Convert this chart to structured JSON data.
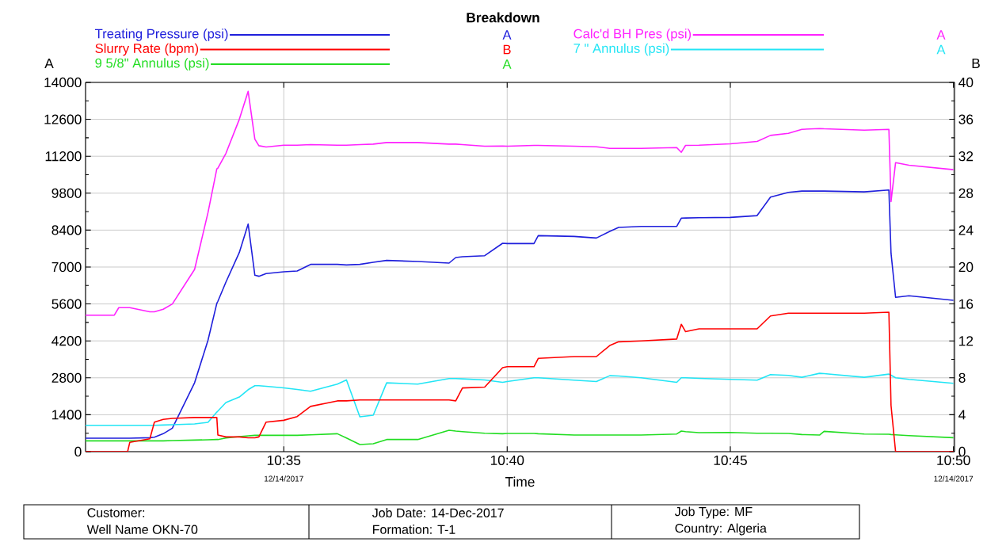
{
  "chart_data": {
    "type": "line",
    "title": "Breakdown",
    "xlabel": "Time",
    "ylabel": "A",
    "y2label": "B",
    "x": [
      10.5093,
      10.52,
      10.5217,
      10.525,
      10.5258,
      10.5333,
      10.535,
      10.5383,
      10.5417,
      10.55,
      10.555,
      10.5583,
      10.5587,
      10.5617,
      10.5667,
      10.57,
      10.5725,
      10.574,
      10.5767,
      10.5833,
      10.5883,
      10.5933,
      10.6033,
      10.6067,
      10.6117,
      10.6167,
      10.6217,
      10.6333,
      10.645,
      10.6475,
      10.65,
      10.6583,
      10.665,
      10.6667,
      10.6767,
      10.6783,
      10.6917,
      10.7,
      10.705,
      10.7083,
      10.7167,
      10.73,
      10.7317,
      10.7333,
      10.7383,
      10.75,
      10.76,
      10.765,
      10.7717,
      10.7767,
      10.7833,
      10.785,
      10.8,
      10.8092,
      10.81,
      10.8117,
      10.8167,
      10.8333
    ],
    "series": [
      {
        "name": "Treating Pressure (psi)",
        "color": "#1f1fdc",
        "axis": "y",
        "values": [
          510,
          510,
          510,
          510,
          510,
          530,
          550,
          680,
          890,
          2610,
          4220,
          5620,
          5700,
          6430,
          7550,
          8630,
          6690,
          6650,
          6750,
          6820,
          6850,
          7100,
          7100,
          7080,
          7100,
          7180,
          7250,
          7210,
          7150,
          7360,
          7390,
          7430,
          7900,
          7890,
          7890,
          8190,
          8160,
          8100,
          8350,
          8500,
          8540,
          8540,
          8850,
          8860,
          8870,
          8880,
          8950,
          9650,
          9830,
          9880,
          9880,
          9880,
          9850,
          9920,
          7520,
          5850,
          5910,
          5740
        ]
      },
      {
        "name": "Slurry Rate (bpm)",
        "color": "#ff0000",
        "axis": "y2",
        "values": [
          0,
          0,
          0,
          0,
          1.0,
          1.4,
          3.2,
          3.5,
          3.6,
          3.7,
          3.7,
          3.7,
          1.8,
          1.6,
          1.6,
          1.5,
          1.5,
          1.6,
          3.2,
          3.4,
          3.8,
          4.9,
          5.5,
          5.5,
          5.6,
          5.6,
          5.6,
          5.6,
          5.6,
          5.5,
          6.9,
          7.0,
          9.1,
          9.2,
          9.2,
          10.1,
          10.3,
          10.3,
          11.5,
          11.9,
          12.0,
          12.2,
          13.8,
          13.0,
          13.3,
          13.3,
          13.3,
          14.7,
          15.0,
          15.0,
          15.0,
          15.0,
          15.0,
          15.1,
          5.0,
          0,
          0,
          0
        ]
      },
      {
        "name": "9 5/8\" Annulus (psi)",
        "color": "#22dd22",
        "axis": "y",
        "values": [
          410,
          410,
          410,
          410,
          410,
          410,
          410,
          410,
          420,
          440,
          450,
          460,
          460,
          520,
          570,
          600,
          620,
          620,
          620,
          620,
          620,
          640,
          680,
          520,
          270,
          300,
          460,
          460,
          810,
          780,
          760,
          700,
          680,
          690,
          690,
          680,
          630,
          630,
          630,
          630,
          630,
          670,
          780,
          760,
          720,
          730,
          700,
          700,
          690,
          650,
          630,
          770,
          670,
          660,
          650,
          640,
          610,
          530
        ]
      },
      {
        "name": "Calc'd BH Pres (psi)",
        "color": "#ff22ff",
        "axis": "y",
        "values": [
          5170,
          5170,
          5460,
          5460,
          5460,
          5300,
          5300,
          5400,
          5600,
          6910,
          9060,
          10720,
          10750,
          11310,
          12600,
          13660,
          11850,
          11600,
          11550,
          11620,
          11620,
          11640,
          11620,
          11620,
          11640,
          11660,
          11720,
          11720,
          11660,
          11660,
          11640,
          11580,
          11590,
          11580,
          11610,
          11610,
          11580,
          11560,
          11500,
          11500,
          11500,
          11530,
          11350,
          11610,
          11620,
          11670,
          11760,
          11990,
          12070,
          12220,
          12250,
          12240,
          12190,
          12220,
          9480,
          10960,
          10860,
          10690
        ]
      },
      {
        "name": "7 \" Annulus (psi)",
        "color": "#22e5f5",
        "axis": "y",
        "values": [
          1000,
          1000,
          1000,
          1000,
          1000,
          1000,
          1000,
          1010,
          1020,
          1050,
          1110,
          1500,
          1540,
          1860,
          2070,
          2350,
          2500,
          2500,
          2480,
          2420,
          2360,
          2290,
          2560,
          2720,
          1320,
          1380,
          2610,
          2560,
          2770,
          2770,
          2760,
          2720,
          2630,
          2660,
          2800,
          2800,
          2710,
          2660,
          2880,
          2870,
          2800,
          2630,
          2800,
          2800,
          2780,
          2740,
          2710,
          2920,
          2890,
          2820,
          2970,
          2960,
          2820,
          2940,
          2900,
          2800,
          2740,
          2590
        ]
      }
    ],
    "xlim": [
      10.5093,
      10.8337
    ],
    "xticks": [
      {
        "value": 10.5833,
        "label": "10:35"
      },
      {
        "value": 10.6667,
        "label": "10:40"
      },
      {
        "value": 10.75,
        "label": "10:45"
      },
      {
        "value": 10.8333,
        "label": "10:50"
      }
    ],
    "ylim": [
      0,
      14000
    ],
    "yticks": [
      0,
      1400,
      2800,
      4200,
      5600,
      7000,
      8400,
      9800,
      11200,
      12600,
      14000
    ],
    "y2lim": [
      0,
      40
    ],
    "y2ticks": [
      0,
      4,
      8,
      12,
      16,
      20,
      24,
      28,
      32,
      36,
      40
    ],
    "grid": true,
    "legend": "top",
    "marker": "none",
    "line_style": "solid",
    "annotations": [
      "12/14/2017",
      "12/14/2017",
      "Customer:",
      "Well Name OKN-70",
      "Job Date: 14-Dec-2017",
      "Formation: T-1",
      "Job Type: MF",
      "Country: Algeria"
    ]
  }
}
